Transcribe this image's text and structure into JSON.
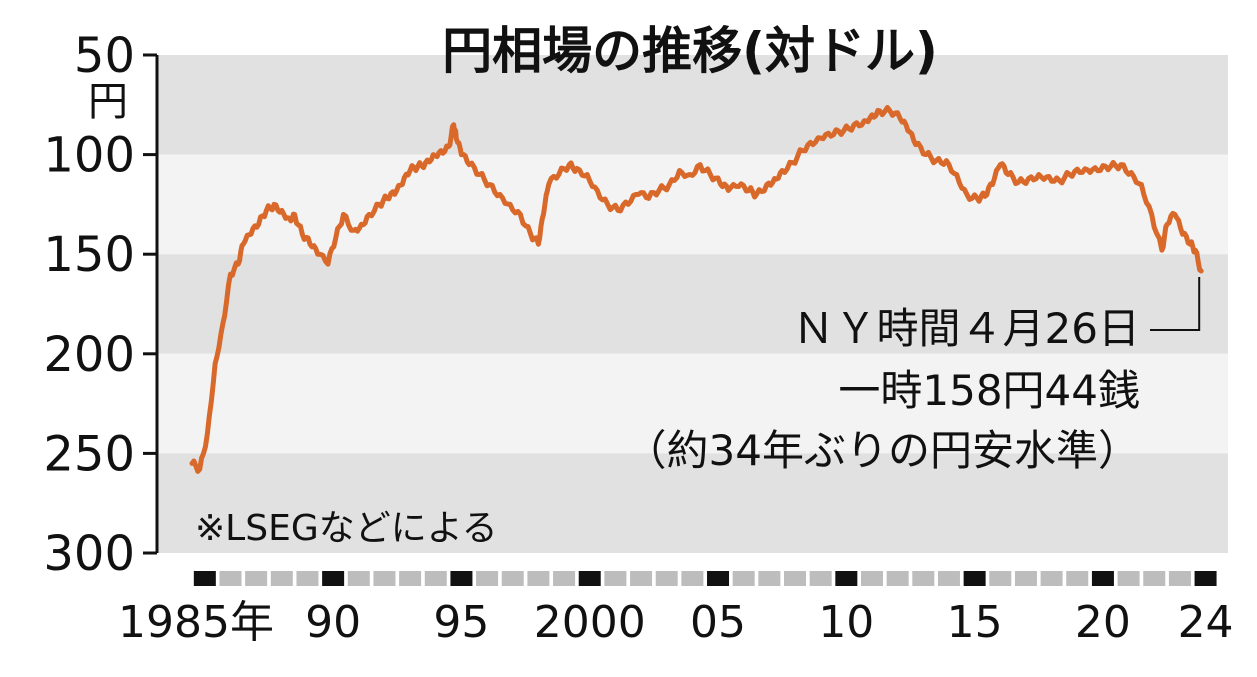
{
  "chart_data": {
    "type": "line",
    "title": "円相場の推移(対ドル)",
    "y_unit": "円",
    "ylim": [
      50,
      300
    ],
    "y_inverted": true,
    "y_ticks": [
      "50",
      "100",
      "150",
      "200",
      "250",
      "300"
    ],
    "xlim": [
      1985,
      2024.4
    ],
    "x_tick_labels": [
      "1985年",
      "90",
      "95",
      "2000",
      "05",
      "10",
      "15",
      "20",
      "24"
    ],
    "grid": "alternating horizontal bands",
    "color": "#d9692a",
    "series": [
      {
        "x": [
          1985.0,
          1985.3,
          1985.6,
          1985.9,
          1986.2,
          1986.5,
          1986.8,
          1987.0,
          1987.3,
          1987.6,
          1987.9,
          1988.2,
          1988.5,
          1988.8,
          1989.0,
          1989.3,
          1989.6,
          1989.9,
          1990.3,
          1990.6,
          1990.9,
          1991.3,
          1991.6,
          1991.9,
          1992.3,
          1992.6,
          1992.9,
          1993.2,
          1993.5,
          1993.8,
          1994.1,
          1994.4,
          1994.7,
          1995.0,
          1995.2,
          1995.3,
          1995.5,
          1995.8,
          1996.2,
          1996.6,
          1997.0,
          1997.4,
          1997.8,
          1998.2,
          1998.5,
          1998.7,
          1998.9,
          1999.3,
          1999.7,
          2000.0,
          2000.4,
          2000.8,
          2001.2,
          2001.6,
          2002.0,
          2002.4,
          2002.8,
          2003.2,
          2003.6,
          2004.0,
          2004.4,
          2004.8,
          2005.2,
          2005.6,
          2005.9,
          2006.3,
          2006.7,
          2007.0,
          2007.4,
          2007.7,
          2008.0,
          2008.4,
          2008.8,
          2009.2,
          2009.6,
          2010.0,
          2010.4,
          2010.8,
          2011.2,
          2011.5,
          2011.8,
          2012.2,
          2012.6,
          2012.9,
          2013.2,
          2013.6,
          2014.0,
          2014.4,
          2014.8,
          2015.2,
          2015.6,
          2015.9,
          2016.2,
          2016.5,
          2016.8,
          2017.2,
          2017.6,
          2018.0,
          2018.4,
          2018.8,
          2019.2,
          2019.6,
          2020.0,
          2020.4,
          2020.8,
          2021.2,
          2021.6,
          2022.0,
          2022.4,
          2022.8,
          2023.0,
          2023.3,
          2023.6,
          2023.9,
          2024.1,
          2024.33
        ],
        "y": [
          255,
          258,
          240,
          205,
          185,
          160,
          155,
          145,
          140,
          135,
          128,
          125,
          128,
          132,
          130,
          140,
          145,
          150,
          155,
          142,
          130,
          138,
          135,
          130,
          125,
          122,
          120,
          115,
          108,
          106,
          104,
          100,
          98,
          96,
          85,
          92,
          100,
          105,
          110,
          115,
          120,
          125,
          130,
          140,
          145,
          130,
          115,
          110,
          105,
          107,
          110,
          118,
          125,
          128,
          125,
          120,
          122,
          118,
          115,
          108,
          110,
          105,
          110,
          115,
          118,
          116,
          118,
          120,
          115,
          112,
          108,
          104,
          98,
          95,
          92,
          90,
          88,
          85,
          83,
          80,
          78,
          78,
          82,
          88,
          95,
          100,
          103,
          103,
          110,
          120,
          122,
          121,
          115,
          105,
          110,
          114,
          112,
          110,
          111,
          113,
          110,
          109,
          109,
          108,
          106,
          105,
          109,
          115,
          130,
          148,
          135,
          130,
          140,
          145,
          148,
          158.44
        ]
      }
    ],
    "annotation": {
      "lines": [
        "ＮＹ時間４月26日",
        "一時158円44銭",
        "（約34年ぶりの円安水準）"
      ],
      "x": 2024.33,
      "y": 158.44
    },
    "source_note": "※LSEGなどによる"
  }
}
